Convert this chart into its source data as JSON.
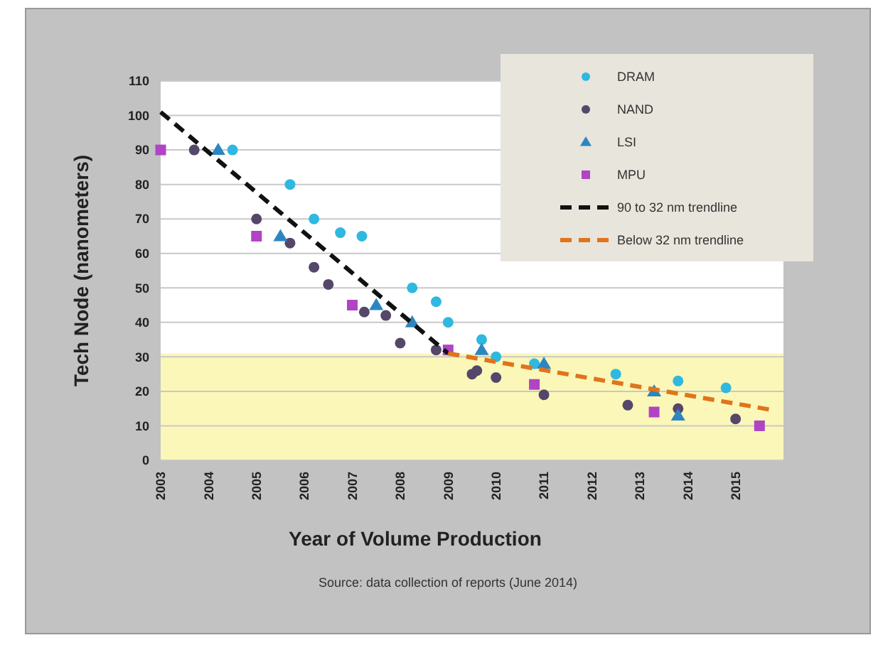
{
  "chart_data": {
    "type": "scatter",
    "ylabel": "Tech Node (nanometers)",
    "xlabel": "Year of Volume Production",
    "annotations": [
      "Source: data collection of reports (June 2014)"
    ],
    "xlim": [
      2003,
      2016
    ],
    "xticks": [
      2003,
      2004,
      2005,
      2006,
      2007,
      2008,
      2009,
      2010,
      2011,
      2012,
      2013,
      2014,
      2015
    ],
    "ylim": [
      0,
      110
    ],
    "yticks": [
      0,
      10,
      20,
      30,
      40,
      50,
      60,
      70,
      80,
      90,
      100,
      110
    ],
    "grid": "y",
    "legend": "top right",
    "bands": [
      {
        "axis": "y",
        "from": 0,
        "to": 31,
        "color": "#fbf7b8"
      }
    ],
    "series": [
      {
        "name": "DRAM",
        "color": "#2fb8e0",
        "marker": "circle",
        "x": [
          2004.5,
          2005.7,
          2006.2,
          2006.75,
          2007.2,
          2008.25,
          2008.75,
          2009.0,
          2009.7,
          2010.0,
          2010.8,
          2012.5,
          2013.8,
          2014.8
        ],
        "values": [
          90,
          80,
          70,
          66,
          65,
          50,
          46,
          40,
          35,
          30,
          28,
          25,
          23,
          21
        ]
      },
      {
        "name": "NAND",
        "color": "#54476a",
        "marker": "circle",
        "x": [
          2003.7,
          2005.0,
          2005.7,
          2006.2,
          2006.5,
          2007.25,
          2007.7,
          2008.0,
          2008.75,
          2009.5,
          2009.6,
          2010.0,
          2011.0,
          2012.75,
          2013.8,
          2015.0
        ],
        "values": [
          90,
          70,
          63,
          56,
          51,
          43,
          42,
          34,
          32,
          25,
          26,
          24,
          19,
          16,
          15,
          12
        ]
      },
      {
        "name": "LSI",
        "color": "#2d86c0",
        "marker": "triangle",
        "x": [
          2004.2,
          2005.5,
          2007.5,
          2008.25,
          2009.7,
          2011.0,
          2013.3,
          2013.8
        ],
        "values": [
          90,
          65,
          45,
          40,
          32,
          28,
          20,
          13
        ]
      },
      {
        "name": "MPU",
        "color": "#b044c4",
        "marker": "square",
        "x": [
          2003.0,
          2005.0,
          2007.0,
          2009.0,
          2010.8,
          2013.3,
          2015.5
        ],
        "values": [
          90,
          65,
          45,
          32,
          22,
          14,
          10
        ]
      },
      {
        "name": "90 to 32 nm trendline",
        "type": "line",
        "color": "#111111",
        "line_style": "dashed",
        "marker": "none",
        "x": [
          2003,
          2009
        ],
        "values": [
          101,
          31
        ]
      },
      {
        "name": "Below 32 nm trendline",
        "type": "line",
        "color": "#e0741c",
        "line_style": "dashed",
        "marker": "none",
        "x": [
          2009,
          2015.8
        ],
        "values": [
          31,
          14.5
        ]
      }
    ]
  }
}
